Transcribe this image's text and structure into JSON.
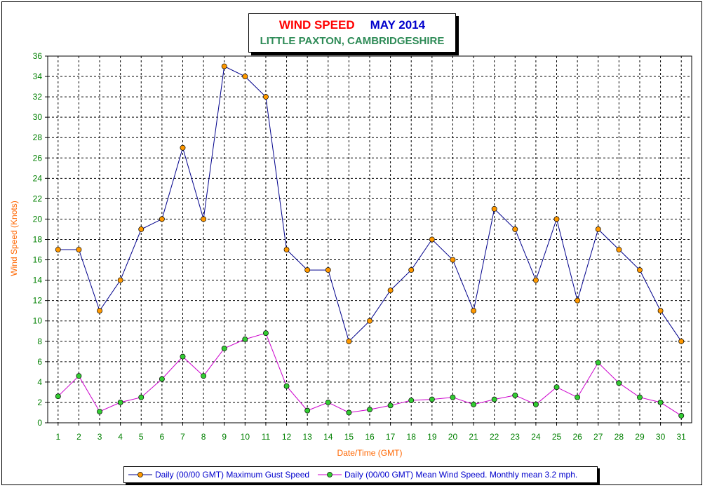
{
  "chart_data": {
    "type": "line",
    "title_part1": "WIND SPEED",
    "title_part2": "MAY 2014",
    "subtitle": "LITTLE PAXTON, CAMBRIDGESHIRE",
    "xlabel": "Date/Time (GMT)",
    "ylabel": "Wind Speed (Knots)",
    "ylim": [
      0,
      36
    ],
    "ytick_step": 2,
    "grid": true,
    "legend_position": "bottom",
    "x": [
      1,
      2,
      3,
      4,
      5,
      6,
      7,
      8,
      9,
      10,
      11,
      12,
      13,
      14,
      15,
      16,
      17,
      18,
      19,
      20,
      21,
      22,
      23,
      24,
      25,
      26,
      27,
      28,
      29,
      30,
      31
    ],
    "series": [
      {
        "name": "Daily (00/00 GMT) Maximum Gust Speed",
        "line_color": "#00008b",
        "marker_color": "#ff9900",
        "values": [
          17,
          17,
          11,
          14,
          19,
          20,
          27,
          20,
          35,
          34,
          32,
          17,
          15,
          15,
          8,
          10,
          13,
          15,
          18,
          16,
          11,
          21,
          19,
          14,
          20,
          12,
          19,
          17,
          15,
          11,
          8
        ]
      },
      {
        "name": "Daily (00/00 GMT) Mean Wind Speed. Monthly mean 3.2 mph.",
        "line_color": "#cc00cc",
        "marker_color": "#33cc33",
        "values": [
          2.6,
          4.6,
          1.1,
          2.0,
          2.5,
          4.3,
          6.5,
          4.6,
          7.3,
          8.2,
          8.8,
          3.6,
          1.2,
          2.0,
          1.0,
          1.3,
          1.7,
          2.2,
          2.3,
          2.5,
          1.8,
          2.3,
          2.7,
          1.8,
          3.5,
          2.5,
          5.9,
          3.9,
          2.5,
          2.0,
          0.7
        ]
      }
    ],
    "colors": {
      "axis_text": "#008000",
      "label_text": "#ff6600",
      "grid": "#000000"
    }
  }
}
